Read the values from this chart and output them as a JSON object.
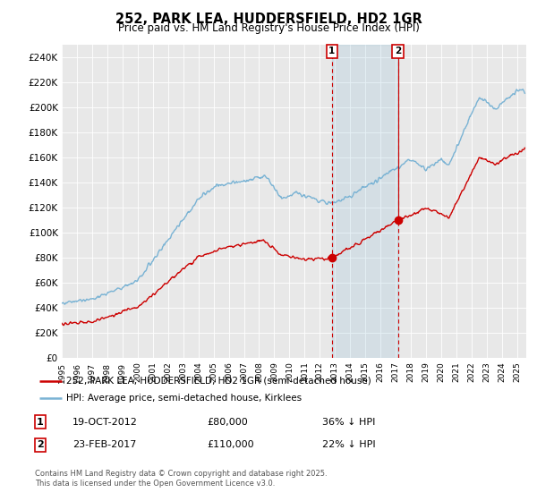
{
  "title": "252, PARK LEA, HUDDERSFIELD, HD2 1GR",
  "subtitle": "Price paid vs. HM Land Registry's House Price Index (HPI)",
  "ylim": [
    0,
    250000
  ],
  "yticks": [
    0,
    20000,
    40000,
    60000,
    80000,
    100000,
    120000,
    140000,
    160000,
    180000,
    200000,
    220000,
    240000
  ],
  "ytick_labels": [
    "£0",
    "£20K",
    "£40K",
    "£60K",
    "£80K",
    "£100K",
    "£120K",
    "£140K",
    "£160K",
    "£180K",
    "£200K",
    "£220K",
    "£240K"
  ],
  "hpi_color": "#7ab3d4",
  "price_color": "#cc0000",
  "sale1_date": 2012.8,
  "sale1_price": 80000,
  "sale2_date": 2017.15,
  "sale2_price": 110000,
  "legend_label_price": "252, PARK LEA, HUDDERSFIELD, HD2 1GR (semi-detached house)",
  "legend_label_hpi": "HPI: Average price, semi-detached house, Kirklees",
  "annotation1_label": "1",
  "annotation1_date": "19-OCT-2012",
  "annotation1_price": "£80,000",
  "annotation1_hpi": "36% ↓ HPI",
  "annotation2_label": "2",
  "annotation2_date": "23-FEB-2017",
  "annotation2_price": "£110,000",
  "annotation2_hpi": "22% ↓ HPI",
  "footer": "Contains HM Land Registry data © Crown copyright and database right 2025.\nThis data is licensed under the Open Government Licence v3.0.",
  "background_color": "#ffffff",
  "plot_bg_color": "#e8e8e8"
}
